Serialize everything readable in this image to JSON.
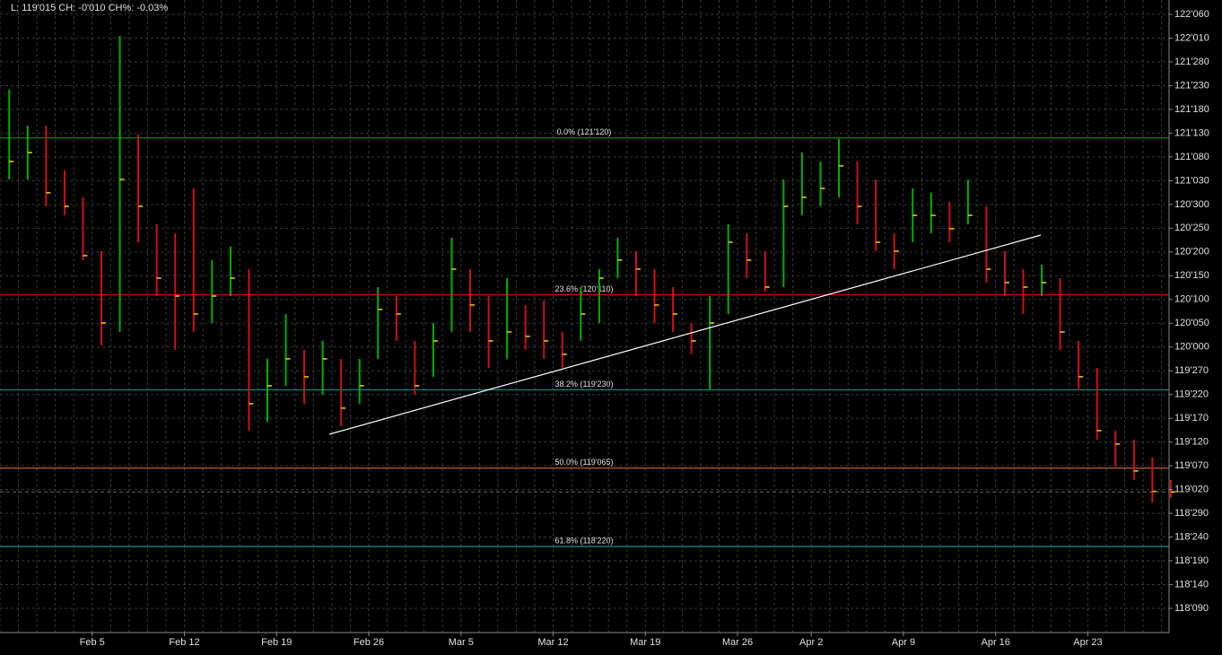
{
  "chart_data": {
    "type": "ohlc",
    "info": "L: 119'015 CH: -0'010 CH%: -0.03%",
    "categories": [
      null,
      null,
      null,
      null,
      null,
      "Feb 5",
      null,
      null,
      null,
      null,
      "Feb 12",
      null,
      null,
      null,
      null,
      "Feb 19",
      null,
      null,
      null,
      null,
      "Feb 26",
      null,
      null,
      null,
      null,
      "Mar 5",
      null,
      null,
      null,
      null,
      "Mar 12",
      null,
      null,
      null,
      null,
      "Mar 19",
      null,
      null,
      null,
      null,
      "Mar 26",
      null,
      null,
      null,
      "Apr 2",
      null,
      null,
      null,
      null,
      "Apr 9",
      null,
      null,
      null,
      null,
      "Apr 16",
      null,
      null,
      null,
      null,
      "Apr 23",
      null,
      null,
      null,
      null
    ],
    "high": [
      121.692,
      121.456,
      121.456,
      121.161,
      120.984,
      120.63,
      122.046,
      121.397,
      120.807,
      120.748,
      121.043,
      120.571,
      120.66,
      120.512,
      119.922,
      120.217,
      119.981,
      120.04,
      119.922,
      119.922,
      120.394,
      120.335,
      120.04,
      120.158,
      120.719,
      120.512,
      120.335,
      120.453,
      120.276,
      120.306,
      120.099,
      120.394,
      120.512,
      120.719,
      120.63,
      120.512,
      120.394,
      120.158,
      120.335,
      120.807,
      120.748,
      120.63,
      121.102,
      121.279,
      121.22,
      121.368,
      121.22,
      121.102,
      120.748,
      121.043,
      121.014,
      120.955,
      121.102,
      120.925,
      120.63,
      120.512,
      120.542,
      120.453,
      120.04,
      119.863,
      119.45,
      119.391,
      119.273,
      119.126
    ],
    "low": [
      121.102,
      121.102,
      120.925,
      120.866,
      120.571,
      120.011,
      120.099,
      120.689,
      120.335,
      119.981,
      120.099,
      120.158,
      120.335,
      119.45,
      119.509,
      119.745,
      119.627,
      119.686,
      119.48,
      119.627,
      119.922,
      120.04,
      119.686,
      119.804,
      120.099,
      120.099,
      119.863,
      119.922,
      119.981,
      119.922,
      119.863,
      120.04,
      120.158,
      120.453,
      120.335,
      120.158,
      120.099,
      119.952,
      119.716,
      120.217,
      120.453,
      120.365,
      120.394,
      120.866,
      120.925,
      120.984,
      120.807,
      120.63,
      120.512,
      120.689,
      120.748,
      120.689,
      120.807,
      120.424,
      120.335,
      120.217,
      120.335,
      119.981,
      119.716,
      119.391,
      119.214,
      119.126,
      118.978,
      119.008
    ],
    "close": [
      121.22,
      121.279,
      121.014,
      120.925,
      120.601,
      120.158,
      121.102,
      120.925,
      120.453,
      120.335,
      120.217,
      120.335,
      120.453,
      119.627,
      119.745,
      119.922,
      119.804,
      119.922,
      119.598,
      119.745,
      120.247,
      120.217,
      119.745,
      120.04,
      120.512,
      120.276,
      120.04,
      120.099,
      120.07,
      120.04,
      119.952,
      120.217,
      120.453,
      120.571,
      120.512,
      120.276,
      120.217,
      120.04,
      120.158,
      120.689,
      120.571,
      120.394,
      120.925,
      120.984,
      121.043,
      121.191,
      120.925,
      120.689,
      120.63,
      120.866,
      120.866,
      120.778,
      120.866,
      120.512,
      120.424,
      120.394,
      120.424,
      120.099,
      119.804,
      119.45,
      119.362,
      119.185,
      119.05,
      119.047
    ],
    "up_color": "#00b000",
    "down_color": "#d01010",
    "ylim": [
      118.122,
      122.282
    ],
    "yticks": [
      {
        "value": 122.1875,
        "label": "122'060"
      },
      {
        "value": 122.03125,
        "label": "122'010"
      },
      {
        "value": 121.875,
        "label": "121'280"
      },
      {
        "value": 121.71875,
        "label": "121'230"
      },
      {
        "value": 121.5625,
        "label": "121'180"
      },
      {
        "value": 121.40625,
        "label": "121'130"
      },
      {
        "value": 121.25,
        "label": "121'080"
      },
      {
        "value": 121.09375,
        "label": "121'030"
      },
      {
        "value": 120.9375,
        "label": "120'300"
      },
      {
        "value": 120.78125,
        "label": "120'250"
      },
      {
        "value": 120.625,
        "label": "120'200"
      },
      {
        "value": 120.46875,
        "label": "120'150"
      },
      {
        "value": 120.3125,
        "label": "120'100"
      },
      {
        "value": 120.15625,
        "label": "120'050"
      },
      {
        "value": 120,
        "label": "120'000"
      },
      {
        "value": 119.84375,
        "label": "119'270"
      },
      {
        "value": 119.6875,
        "label": "119'220"
      },
      {
        "value": 119.53125,
        "label": "119'170"
      },
      {
        "value": 119.375,
        "label": "119'120"
      },
      {
        "value": 119.21875,
        "label": "119'070"
      },
      {
        "value": 119.0625,
        "label": "119'020"
      },
      {
        "value": 118.90625,
        "label": "118'290"
      },
      {
        "value": 118.75,
        "label": "118'240"
      },
      {
        "value": 118.59375,
        "label": "118'190"
      },
      {
        "value": 118.4375,
        "label": "118'140"
      },
      {
        "value": 118.28125,
        "label": "118'090"
      }
    ],
    "grid": true,
    "levels": [
      {
        "label": "0.0% (121'120)",
        "value": 121.375,
        "color": "#10a010"
      },
      {
        "label": "23.6% (120'110)",
        "value": 120.34375,
        "color": "#c01020"
      },
      {
        "label": "38.2% (119'230)",
        "value": 119.71875,
        "color": "#10a0a0"
      },
      {
        "label": "50.0% (119'065)",
        "value": 119.203125,
        "color": "#e08040"
      },
      {
        "label": "61.8% (118'220)",
        "value": 118.6875,
        "color": "#10b0c0"
      }
    ]
  }
}
